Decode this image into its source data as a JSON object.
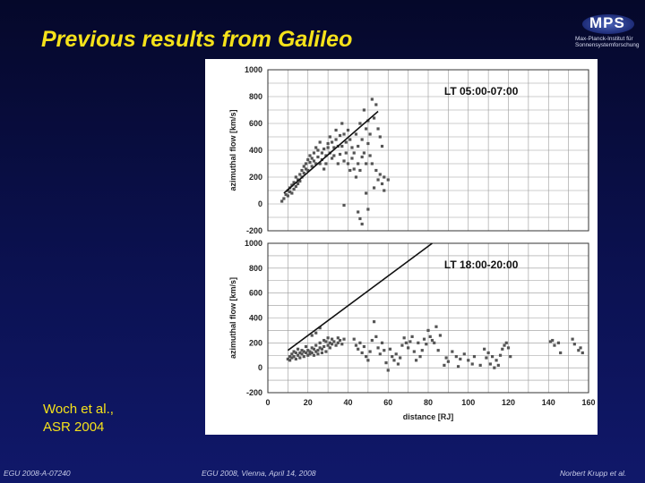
{
  "slide": {
    "title": "Previous results from Galileo",
    "credit_line1": "Woch et al.,",
    "credit_line2": "ASR 2004",
    "footer_left": "EGU 2008-A-07240",
    "footer_center": "EGU 2008, Vienna, April 14, 2008",
    "footer_right": "Norbert Krupp et al."
  },
  "logo": {
    "text": "MPS",
    "subtitle_line1": "Max-Planck-Institut für",
    "subtitle_line2": "Sonnensystemforschung",
    "colors": {
      "mark": "#2b3a8c",
      "text": "#ffffff"
    }
  },
  "colors": {
    "title": "#f5e21a",
    "background": "#0b1150",
    "points": "#555555",
    "trend_line": "#111111",
    "grid": "#999999"
  },
  "chart_data": [
    {
      "type": "scatter",
      "annotation": "LT 05:00-07:00",
      "ylabel": "azimuthal flow [km/s]",
      "xlabel": "",
      "xlim": [
        0,
        160
      ],
      "ylim": [
        -200,
        1000
      ],
      "yticks": [
        -200,
        0,
        200,
        400,
        600,
        800,
        1000
      ],
      "xticks": [],
      "grid": true,
      "trend_line": [
        [
          8,
          80
        ],
        [
          55,
          690
        ]
      ],
      "points": [
        [
          7,
          20
        ],
        [
          8,
          40
        ],
        [
          9,
          70
        ],
        [
          10,
          100
        ],
        [
          10,
          60
        ],
        [
          11,
          120
        ],
        [
          11,
          90
        ],
        [
          12,
          140
        ],
        [
          12,
          80
        ],
        [
          13,
          160
        ],
        [
          13,
          110
        ],
        [
          14,
          130
        ],
        [
          14,
          200
        ],
        [
          15,
          180
        ],
        [
          15,
          150
        ],
        [
          16,
          220
        ],
        [
          16,
          170
        ],
        [
          17,
          250
        ],
        [
          17,
          200
        ],
        [
          18,
          280
        ],
        [
          18,
          230
        ],
        [
          19,
          260
        ],
        [
          19,
          300
        ],
        [
          20,
          330
        ],
        [
          20,
          250
        ],
        [
          21,
          310
        ],
        [
          21,
          360
        ],
        [
          22,
          340
        ],
        [
          22,
          280
        ],
        [
          23,
          380
        ],
        [
          23,
          320
        ],
        [
          24,
          420
        ],
        [
          24,
          300
        ],
        [
          25,
          350
        ],
        [
          25,
          400
        ],
        [
          26,
          300
        ],
        [
          26,
          460
        ],
        [
          27,
          380
        ],
        [
          27,
          330
        ],
        [
          28,
          410
        ],
        [
          28,
          260
        ],
        [
          29,
          360
        ],
        [
          29,
          300
        ],
        [
          30,
          450
        ],
        [
          30,
          420
        ],
        [
          31,
          380
        ],
        [
          31,
          500
        ],
        [
          32,
          460
        ],
        [
          32,
          340
        ],
        [
          33,
          420
        ],
        [
          33,
          360
        ],
        [
          34,
          550
        ],
        [
          34,
          480
        ],
        [
          35,
          430
        ],
        [
          35,
          300
        ],
        [
          36,
          510
        ],
        [
          36,
          370
        ],
        [
          37,
          600
        ],
        [
          37,
          430
        ],
        [
          38,
          520
        ],
        [
          38,
          320
        ],
        [
          39,
          460
        ],
        [
          39,
          380
        ],
        [
          40,
          550
        ],
        [
          40,
          300
        ],
        [
          41,
          480
        ],
        [
          41,
          250
        ],
        [
          42,
          420
        ],
        [
          42,
          340
        ],
        [
          43,
          380
        ],
        [
          43,
          260
        ],
        [
          44,
          520
        ],
        [
          44,
          200
        ],
        [
          45,
          430
        ],
        [
          45,
          300
        ],
        [
          46,
          600
        ],
        [
          46,
          250
        ],
        [
          47,
          480
        ],
        [
          47,
          350
        ],
        [
          48,
          700
        ],
        [
          48,
          380
        ],
        [
          49,
          560
        ],
        [
          49,
          300
        ],
        [
          50,
          620
        ],
        [
          50,
          450
        ],
        [
          51,
          520
        ],
        [
          51,
          360
        ],
        [
          52,
          780
        ],
        [
          52,
          300
        ],
        [
          53,
          640
        ],
        [
          53,
          120
        ],
        [
          54,
          740
        ],
        [
          54,
          250
        ],
        [
          55,
          560
        ],
        [
          55,
          180
        ],
        [
          56,
          500
        ],
        [
          56,
          220
        ],
        [
          57,
          430
        ],
        [
          57,
          150
        ],
        [
          58,
          100
        ],
        [
          58,
          200
        ],
        [
          38,
          -10
        ],
        [
          45,
          -60
        ],
        [
          46,
          -110
        ],
        [
          47,
          -150
        ],
        [
          49,
          80
        ],
        [
          50,
          -40
        ],
        [
          60,
          180
        ]
      ]
    },
    {
      "type": "scatter",
      "annotation": "LT 18:00-20:00",
      "ylabel": "azimuthal flow [km/s]",
      "xlabel": "distance [RJ]",
      "xlim": [
        0,
        160
      ],
      "ylim": [
        -200,
        1000
      ],
      "yticks": [
        -200,
        0,
        200,
        400,
        600,
        800,
        1000
      ],
      "xticks": [
        0,
        20,
        40,
        60,
        80,
        100,
        120,
        140,
        160
      ],
      "grid": true,
      "trend_line": [
        [
          10,
          140
        ],
        [
          82,
          1000
        ]
      ],
      "points": [
        [
          10,
          70
        ],
        [
          11,
          90
        ],
        [
          11,
          60
        ],
        [
          12,
          110
        ],
        [
          12,
          80
        ],
        [
          13,
          130
        ],
        [
          13,
          90
        ],
        [
          14,
          70
        ],
        [
          14,
          120
        ],
        [
          15,
          100
        ],
        [
          15,
          150
        ],
        [
          16,
          80
        ],
        [
          16,
          120
        ],
        [
          17,
          110
        ],
        [
          17,
          140
        ],
        [
          18,
          90
        ],
        [
          18,
          130
        ],
        [
          19,
          120
        ],
        [
          19,
          170
        ],
        [
          20,
          100
        ],
        [
          20,
          140
        ],
        [
          21,
          130
        ],
        [
          21,
          110
        ],
        [
          22,
          160
        ],
        [
          22,
          120
        ],
        [
          23,
          100
        ],
        [
          23,
          150
        ],
        [
          24,
          130
        ],
        [
          24,
          180
        ],
        [
          25,
          140
        ],
        [
          25,
          110
        ],
        [
          26,
          160
        ],
        [
          26,
          200
        ],
        [
          27,
          150
        ],
        [
          27,
          120
        ],
        [
          28,
          220
        ],
        [
          28,
          170
        ],
        [
          29,
          130
        ],
        [
          29,
          210
        ],
        [
          30,
          180
        ],
        [
          30,
          240
        ],
        [
          31,
          200
        ],
        [
          31,
          160
        ],
        [
          32,
          230
        ],
        [
          32,
          190
        ],
        [
          33,
          210
        ],
        [
          34,
          180
        ],
        [
          35,
          240
        ],
        [
          35,
          200
        ],
        [
          36,
          220
        ],
        [
          37,
          190
        ],
        [
          38,
          230
        ],
        [
          24,
          280
        ],
        [
          26,
          320
        ],
        [
          22,
          260
        ],
        [
          43,
          230
        ],
        [
          44,
          180
        ],
        [
          45,
          150
        ],
        [
          46,
          200
        ],
        [
          47,
          120
        ],
        [
          48,
          170
        ],
        [
          49,
          90
        ],
        [
          50,
          60
        ],
        [
          51,
          130
        ],
        [
          52,
          220
        ],
        [
          53,
          370
        ],
        [
          54,
          250
        ],
        [
          55,
          160
        ],
        [
          56,
          110
        ],
        [
          57,
          200
        ],
        [
          58,
          140
        ],
        [
          59,
          40
        ],
        [
          60,
          -20
        ],
        [
          61,
          150
        ],
        [
          62,
          90
        ],
        [
          63,
          60
        ],
        [
          64,
          110
        ],
        [
          65,
          30
        ],
        [
          66,
          80
        ],
        [
          67,
          180
        ],
        [
          68,
          240
        ],
        [
          69,
          200
        ],
        [
          70,
          160
        ],
        [
          71,
          210
        ],
        [
          72,
          250
        ],
        [
          73,
          130
        ],
        [
          74,
          60
        ],
        [
          75,
          200
        ],
        [
          76,
          90
        ],
        [
          77,
          140
        ],
        [
          78,
          230
        ],
        [
          79,
          190
        ],
        [
          80,
          300
        ],
        [
          81,
          250
        ],
        [
          82,
          220
        ],
        [
          83,
          200
        ],
        [
          84,
          330
        ],
        [
          85,
          140
        ],
        [
          86,
          260
        ],
        [
          88,
          20
        ],
        [
          89,
          80
        ],
        [
          90,
          50
        ],
        [
          92,
          130
        ],
        [
          94,
          90
        ],
        [
          95,
          10
        ],
        [
          96,
          70
        ],
        [
          98,
          110
        ],
        [
          100,
          60
        ],
        [
          102,
          30
        ],
        [
          103,
          90
        ],
        [
          106,
          20
        ],
        [
          108,
          150
        ],
        [
          109,
          80
        ],
        [
          110,
          120
        ],
        [
          111,
          30
        ],
        [
          112,
          90
        ],
        [
          113,
          0
        ],
        [
          114,
          60
        ],
        [
          115,
          20
        ],
        [
          116,
          100
        ],
        [
          117,
          150
        ],
        [
          118,
          180
        ],
        [
          119,
          200
        ],
        [
          120,
          160
        ],
        [
          121,
          90
        ],
        [
          141,
          210
        ],
        [
          142,
          220
        ],
        [
          143,
          180
        ],
        [
          145,
          200
        ],
        [
          146,
          120
        ],
        [
          152,
          230
        ],
        [
          153,
          190
        ],
        [
          155,
          140
        ],
        [
          156,
          160
        ],
        [
          157,
          120
        ]
      ]
    }
  ]
}
